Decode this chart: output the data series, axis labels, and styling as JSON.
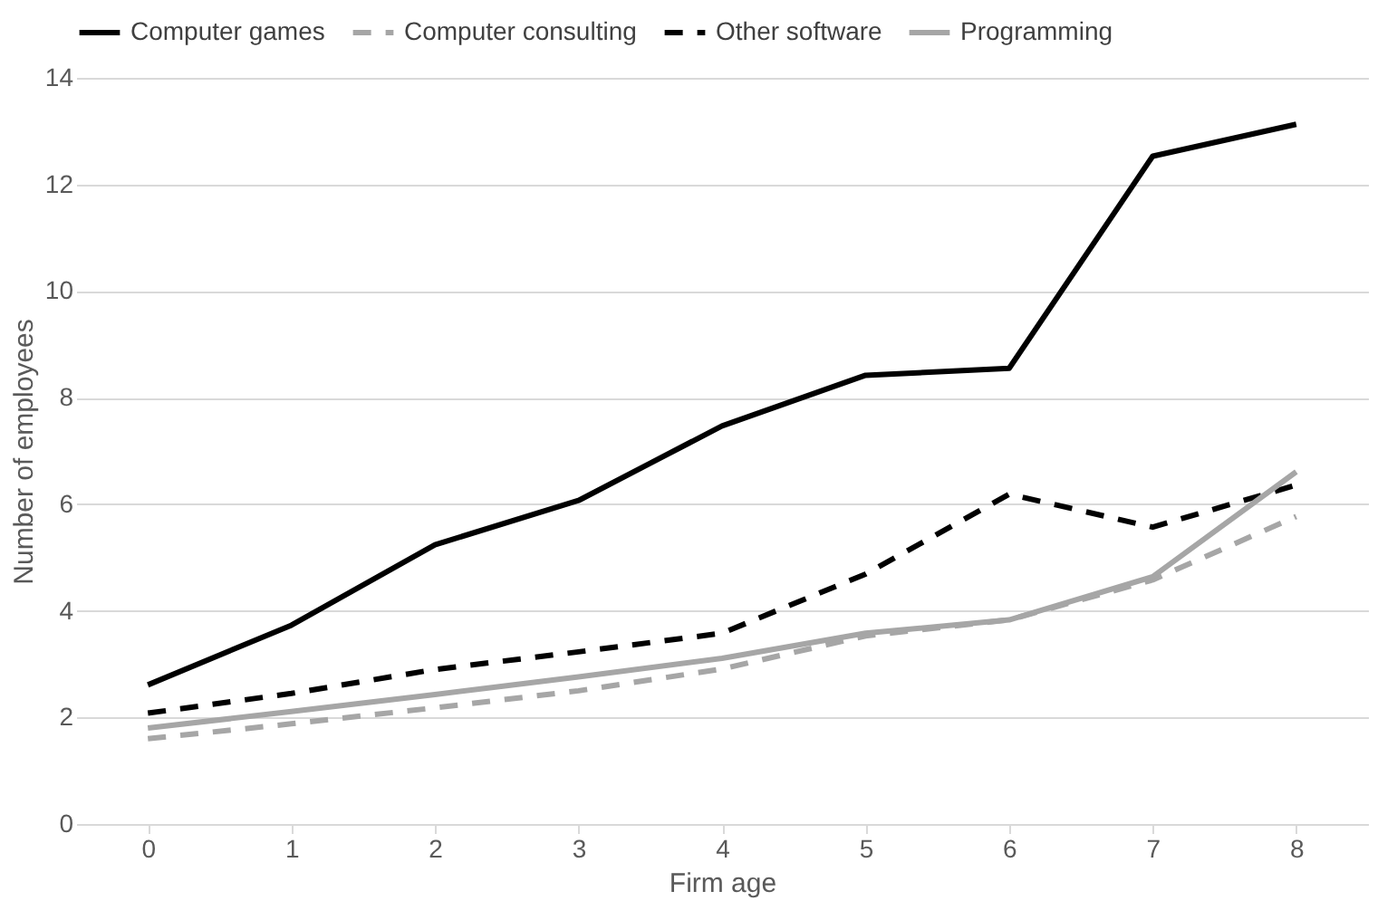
{
  "chart_data": {
    "type": "line",
    "xlabel": "Firm age",
    "ylabel": "Number of employees",
    "x": [
      0,
      1,
      2,
      3,
      4,
      5,
      6,
      7,
      8
    ],
    "xlim": [
      -0.5,
      8.5
    ],
    "xticks": [
      0,
      1,
      2,
      3,
      4,
      5,
      6,
      7,
      8
    ],
    "ylim": [
      0,
      14
    ],
    "yticks": [
      0,
      2,
      4,
      6,
      8,
      10,
      12,
      14
    ],
    "grid": "y",
    "legend": "top",
    "series": [
      {
        "name": "Computer games",
        "color": "#000000",
        "line_style": "solid",
        "values": [
          2.61,
          3.73,
          5.24,
          6.07,
          7.47,
          8.42,
          8.55,
          12.53,
          13.13
        ]
      },
      {
        "name": "Computer consulting",
        "color": "#a6a6a6",
        "line_style": "dashed",
        "values": [
          1.6,
          1.88,
          2.18,
          2.5,
          2.91,
          3.53,
          3.83,
          4.58,
          5.77
        ]
      },
      {
        "name": "Other software",
        "color": "#000000",
        "line_style": "dashed",
        "values": [
          2.08,
          2.45,
          2.9,
          3.23,
          3.58,
          4.69,
          6.19,
          5.57,
          6.36
        ]
      },
      {
        "name": "Programming",
        "color": "#a6a6a6",
        "line_style": "solid",
        "values": [
          1.8,
          2.11,
          2.43,
          2.76,
          3.11,
          3.58,
          3.83,
          4.64,
          6.61
        ]
      }
    ]
  }
}
